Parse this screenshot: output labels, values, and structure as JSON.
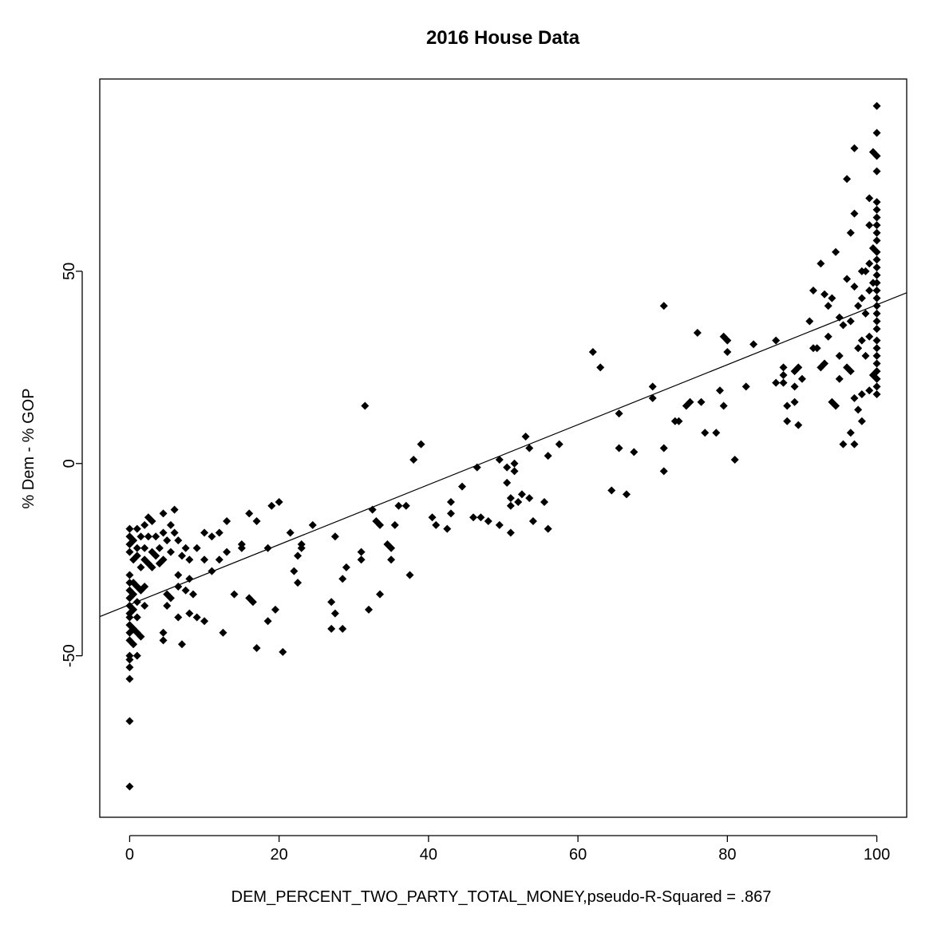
{
  "chart_data": {
    "type": "scatter",
    "title": "2016 House Data",
    "xlabel": "DEM_PERCENT_TWO_PARTY_TOTAL_MONEY,pseudo-R-Squared = .867",
    "ylabel": "% Dem - % GOP",
    "xlim": [
      -4,
      104
    ],
    "ylim": [
      -92,
      100
    ],
    "x_ticks": [
      0,
      20,
      40,
      60,
      80,
      100
    ],
    "x_tick_labels": [
      "0",
      "20",
      "40",
      "60",
      "80",
      "100"
    ],
    "y_ticks": [
      -50,
      0,
      50
    ],
    "y_tick_labels": [
      "-50",
      "0",
      "50"
    ],
    "grid": false,
    "legend": "none",
    "point_color": "#000000",
    "line_color": "#000000",
    "fit_line": {
      "intercept": -36.7,
      "slope": 0.78
    },
    "points": [
      [
        0.0,
        -17
      ],
      [
        0.0,
        -19
      ],
      [
        0.0,
        -21
      ],
      [
        0.0,
        -23
      ],
      [
        0.0,
        -29
      ],
      [
        0.0,
        -31
      ],
      [
        0.0,
        -33
      ],
      [
        0.0,
        -35
      ],
      [
        0.0,
        -37
      ],
      [
        0.0,
        -39
      ],
      [
        0.0,
        -40
      ],
      [
        0.0,
        -42
      ],
      [
        0.0,
        -44
      ],
      [
        0.0,
        -46
      ],
      [
        0.0,
        -50
      ],
      [
        0.0,
        -51
      ],
      [
        0.0,
        -53
      ],
      [
        0.0,
        -56
      ],
      [
        0.0,
        -67
      ],
      [
        0.0,
        -84
      ],
      [
        0.5,
        -20
      ],
      [
        0.5,
        -25
      ],
      [
        0.5,
        -31
      ],
      [
        0.5,
        -34
      ],
      [
        0.5,
        -38
      ],
      [
        0.5,
        -43
      ],
      [
        0.5,
        -47
      ],
      [
        1.0,
        -17
      ],
      [
        1.0,
        -22
      ],
      [
        1.0,
        -24
      ],
      [
        1.0,
        -32
      ],
      [
        1.0,
        -36
      ],
      [
        1.0,
        -40
      ],
      [
        1.0,
        -44
      ],
      [
        1.0,
        -50
      ],
      [
        1.5,
        -19
      ],
      [
        1.5,
        -27
      ],
      [
        1.5,
        -33
      ],
      [
        1.5,
        -45
      ],
      [
        2.0,
        -16
      ],
      [
        2.0,
        -22
      ],
      [
        2.0,
        -25
      ],
      [
        2.0,
        -32
      ],
      [
        2.0,
        -37
      ],
      [
        2.5,
        -14
      ],
      [
        2.5,
        -19
      ],
      [
        2.5,
        -26
      ],
      [
        3.0,
        -15
      ],
      [
        3.0,
        -23
      ],
      [
        3.0,
        -27
      ],
      [
        3.5,
        -19
      ],
      [
        3.5,
        -24
      ],
      [
        4.0,
        -22
      ],
      [
        4.0,
        -26
      ],
      [
        4.5,
        -13
      ],
      [
        4.5,
        -18
      ],
      [
        4.5,
        -25
      ],
      [
        4.5,
        -44
      ],
      [
        4.5,
        -46
      ],
      [
        5.0,
        -20
      ],
      [
        5.0,
        -34
      ],
      [
        5.0,
        -37
      ],
      [
        5.5,
        -16
      ],
      [
        5.5,
        -23
      ],
      [
        5.5,
        -35
      ],
      [
        6.0,
        -12
      ],
      [
        6.0,
        -18
      ],
      [
        6.5,
        -20
      ],
      [
        6.5,
        -29
      ],
      [
        6.5,
        -32
      ],
      [
        6.5,
        -40
      ],
      [
        7.0,
        -24
      ],
      [
        7.0,
        -47
      ],
      [
        7.5,
        -22
      ],
      [
        7.5,
        -33
      ],
      [
        8.0,
        -25
      ],
      [
        8.0,
        -30
      ],
      [
        8.0,
        -39
      ],
      [
        8.5,
        -34
      ],
      [
        9.0,
        -22
      ],
      [
        9.0,
        -40
      ],
      [
        10.0,
        -18
      ],
      [
        10.0,
        -25
      ],
      [
        10.0,
        -41
      ],
      [
        11.0,
        -19
      ],
      [
        11.0,
        -28
      ],
      [
        12.0,
        -18
      ],
      [
        12.0,
        -25
      ],
      [
        12.5,
        -44
      ],
      [
        13.0,
        -15
      ],
      [
        13.0,
        -23
      ],
      [
        14.0,
        -34
      ],
      [
        15.0,
        -21
      ],
      [
        15.0,
        -22
      ],
      [
        16.0,
        -13
      ],
      [
        16.0,
        -35
      ],
      [
        16.5,
        -36
      ],
      [
        17.0,
        -15
      ],
      [
        17.0,
        -48
      ],
      [
        18.5,
        -22
      ],
      [
        18.5,
        -41
      ],
      [
        19.0,
        -11
      ],
      [
        19.5,
        -38
      ],
      [
        20.0,
        -10
      ],
      [
        20.5,
        -49
      ],
      [
        21.5,
        -18
      ],
      [
        22.0,
        -28
      ],
      [
        22.5,
        -24
      ],
      [
        22.5,
        -31
      ],
      [
        23.0,
        -21
      ],
      [
        23.0,
        -22
      ],
      [
        24.5,
        -16
      ],
      [
        27.0,
        -36
      ],
      [
        27.0,
        -43
      ],
      [
        27.5,
        -19
      ],
      [
        27.5,
        -39
      ],
      [
        28.5,
        -30
      ],
      [
        28.5,
        -43
      ],
      [
        29.0,
        -27
      ],
      [
        31.0,
        -23
      ],
      [
        31.0,
        -25
      ],
      [
        31.5,
        15
      ],
      [
        32.0,
        -38
      ],
      [
        32.5,
        -12
      ],
      [
        33.0,
        -15
      ],
      [
        33.5,
        -34
      ],
      [
        33.5,
        -16
      ],
      [
        34.5,
        -21
      ],
      [
        35.0,
        -22
      ],
      [
        35.0,
        -25
      ],
      [
        35.5,
        -16
      ],
      [
        36.0,
        -11
      ],
      [
        37.0,
        -11
      ],
      [
        37.5,
        -29
      ],
      [
        38.0,
        1
      ],
      [
        39.0,
        5
      ],
      [
        40.5,
        -14
      ],
      [
        41.0,
        -16
      ],
      [
        42.5,
        -17
      ],
      [
        43.0,
        -13
      ],
      [
        43.0,
        -10
      ],
      [
        44.5,
        -6
      ],
      [
        46.0,
        -14
      ],
      [
        46.5,
        -1
      ],
      [
        47.0,
        -14
      ],
      [
        48.0,
        -15
      ],
      [
        49.5,
        -16
      ],
      [
        49.5,
        1
      ],
      [
        50.5,
        -5
      ],
      [
        50.5,
        -1
      ],
      [
        51.0,
        -18
      ],
      [
        51.0,
        -11
      ],
      [
        51.0,
        -9
      ],
      [
        51.5,
        0
      ],
      [
        51.5,
        -2
      ],
      [
        52.0,
        -10
      ],
      [
        52.5,
        -8
      ],
      [
        53.0,
        7
      ],
      [
        53.5,
        4
      ],
      [
        53.5,
        -9
      ],
      [
        54.0,
        -15
      ],
      [
        55.5,
        -10
      ],
      [
        56.0,
        -17
      ],
      [
        56.0,
        2
      ],
      [
        57.5,
        5
      ],
      [
        62.0,
        29
      ],
      [
        63.0,
        25
      ],
      [
        64.5,
        -7
      ],
      [
        65.5,
        13
      ],
      [
        65.5,
        4
      ],
      [
        66.5,
        -8
      ],
      [
        67.5,
        3
      ],
      [
        70.0,
        17
      ],
      [
        70.0,
        20
      ],
      [
        71.5,
        41
      ],
      [
        71.5,
        4
      ],
      [
        71.5,
        -2
      ],
      [
        73.0,
        11
      ],
      [
        73.5,
        11
      ],
      [
        74.5,
        15
      ],
      [
        75.0,
        16
      ],
      [
        76.0,
        34
      ],
      [
        76.5,
        16
      ],
      [
        77.0,
        8
      ],
      [
        78.5,
        8
      ],
      [
        79.0,
        19
      ],
      [
        79.5,
        15
      ],
      [
        79.5,
        33
      ],
      [
        80.0,
        32
      ],
      [
        80.0,
        29
      ],
      [
        81.0,
        1
      ],
      [
        82.5,
        20
      ],
      [
        83.5,
        31
      ],
      [
        86.5,
        21
      ],
      [
        86.5,
        32
      ],
      [
        87.5,
        21
      ],
      [
        87.5,
        23
      ],
      [
        87.5,
        25
      ],
      [
        88.0,
        11
      ],
      [
        88.0,
        15
      ],
      [
        89.0,
        20
      ],
      [
        89.0,
        16
      ],
      [
        89.0,
        24
      ],
      [
        89.5,
        10
      ],
      [
        89.5,
        25
      ],
      [
        90.0,
        22
      ],
      [
        91.0,
        37
      ],
      [
        91.5,
        30
      ],
      [
        91.5,
        45
      ],
      [
        92.0,
        30
      ],
      [
        92.5,
        52
      ],
      [
        92.5,
        25
      ],
      [
        93.0,
        44
      ],
      [
        93.0,
        26
      ],
      [
        93.5,
        33
      ],
      [
        93.5,
        41
      ],
      [
        94.0,
        16
      ],
      [
        94.0,
        43
      ],
      [
        94.5,
        15
      ],
      [
        94.5,
        55
      ],
      [
        95.0,
        38
      ],
      [
        95.0,
        22
      ],
      [
        95.0,
        28
      ],
      [
        95.5,
        5
      ],
      [
        95.5,
        36
      ],
      [
        96.0,
        74
      ],
      [
        96.0,
        48
      ],
      [
        96.0,
        25
      ],
      [
        96.5,
        24
      ],
      [
        96.5,
        60
      ],
      [
        96.5,
        8
      ],
      [
        96.5,
        37
      ],
      [
        97.0,
        65
      ],
      [
        97.0,
        82
      ],
      [
        97.0,
        46
      ],
      [
        97.0,
        17
      ],
      [
        97.0,
        5
      ],
      [
        97.5,
        30
      ],
      [
        97.5,
        41
      ],
      [
        97.5,
        14
      ],
      [
        98.0,
        50
      ],
      [
        98.0,
        11
      ],
      [
        98.0,
        18
      ],
      [
        98.0,
        43
      ],
      [
        98.0,
        32
      ],
      [
        98.5,
        50
      ],
      [
        98.5,
        39
      ],
      [
        98.5,
        28
      ],
      [
        99.0,
        69
      ],
      [
        99.0,
        62
      ],
      [
        99.0,
        45
      ],
      [
        99.0,
        52
      ],
      [
        99.0,
        19
      ],
      [
        99.0,
        33
      ],
      [
        99.5,
        81
      ],
      [
        99.5,
        47
      ],
      [
        99.5,
        23
      ],
      [
        99.5,
        56
      ],
      [
        100.0,
        93
      ],
      [
        100.0,
        86
      ],
      [
        100.0,
        80
      ],
      [
        100.0,
        76
      ],
      [
        100.0,
        68
      ],
      [
        100.0,
        66
      ],
      [
        100.0,
        64
      ],
      [
        100.0,
        62
      ],
      [
        100.0,
        60
      ],
      [
        100.0,
        58
      ],
      [
        100.0,
        55
      ],
      [
        100.0,
        53
      ],
      [
        100.0,
        51
      ],
      [
        100.0,
        49
      ],
      [
        100.0,
        47
      ],
      [
        100.0,
        45
      ],
      [
        100.0,
        43
      ],
      [
        100.0,
        41
      ],
      [
        100.0,
        39
      ],
      [
        100.0,
        37
      ],
      [
        100.0,
        35
      ],
      [
        100.0,
        32
      ],
      [
        100.0,
        30
      ],
      [
        100.0,
        28
      ],
      [
        100.0,
        26
      ],
      [
        100.0,
        24
      ],
      [
        100.0,
        22
      ],
      [
        100.0,
        20
      ],
      [
        100.0,
        18
      ]
    ]
  }
}
